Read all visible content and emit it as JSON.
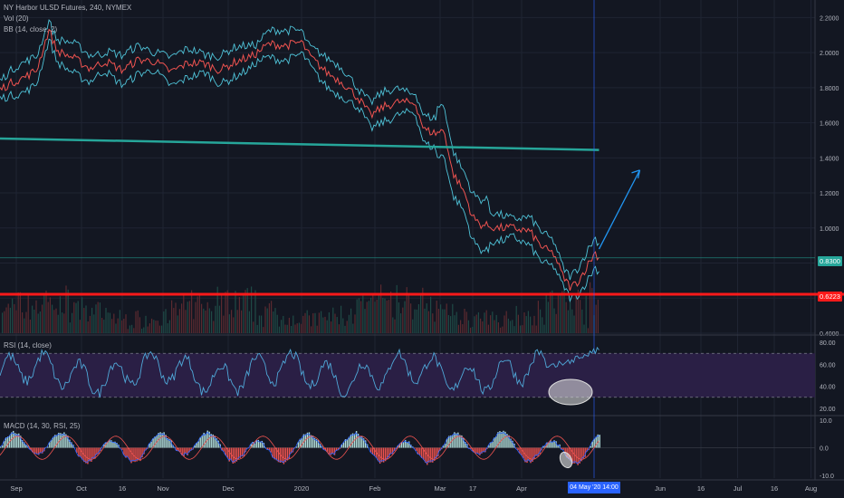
{
  "header": {
    "symbol_line": "NY Harbor ULSD Futures, 240, NYMEX",
    "vol_legend": "Vol (20)",
    "bb_legend": "BB (14, close, 2)"
  },
  "rsi_legend": "RSI (14, close)",
  "macd_legend": "MACD (14, 30, RSI, 25)",
  "colors": {
    "background": "#131722",
    "price_line": "#ef5350",
    "bands": "#4fc3d8",
    "support": "#ff1a1a",
    "trendline": "#26a69a",
    "rsi_line": "#4fa8d8",
    "rsi_band": "#2a1f45",
    "hist_up": "#b2dfdb",
    "hist_down": "#ef5350",
    "arrow": "#2196f3"
  },
  "chart_data": [
    {
      "type": "line",
      "pane": "price",
      "x_labels": [
        "Sep",
        "Oct",
        "16",
        "Nov",
        "Dec",
        "2020",
        "Feb",
        "Mar",
        "17",
        "Apr",
        "Jun",
        "16",
        "Jul",
        "16",
        "Aug"
      ],
      "x_label_positions": [
        0.02,
        0.1,
        0.15,
        0.2,
        0.28,
        0.37,
        0.46,
        0.54,
        0.58,
        0.64,
        0.81,
        0.86,
        0.905,
        0.95,
        0.995
      ],
      "y_ticks": [
        "2.2000",
        "2.0000",
        "1.8000",
        "1.6000",
        "1.4000",
        "1.2000",
        "1.0000",
        "0.8000",
        "0.6000",
        "0.4000"
      ],
      "ylim": [
        0.4,
        2.3
      ],
      "price_series": [
        [
          0.0,
          1.79
        ],
        [
          0.015,
          1.83
        ],
        [
          0.03,
          1.86
        ],
        [
          0.045,
          1.9
        ],
        [
          0.06,
          2.13
        ],
        [
          0.07,
          2.01
        ],
        [
          0.09,
          1.97
        ],
        [
          0.11,
          1.91
        ],
        [
          0.13,
          1.95
        ],
        [
          0.15,
          1.9
        ],
        [
          0.17,
          1.96
        ],
        [
          0.19,
          1.95
        ],
        [
          0.21,
          1.89
        ],
        [
          0.23,
          1.94
        ],
        [
          0.25,
          1.94
        ],
        [
          0.27,
          1.9
        ],
        [
          0.29,
          1.95
        ],
        [
          0.31,
          1.98
        ],
        [
          0.33,
          2.05
        ],
        [
          0.35,
          2.04
        ],
        [
          0.37,
          2.06
        ],
        [
          0.38,
          1.98
        ],
        [
          0.4,
          1.89
        ],
        [
          0.42,
          1.83
        ],
        [
          0.44,
          1.74
        ],
        [
          0.455,
          1.64
        ],
        [
          0.47,
          1.69
        ],
        [
          0.49,
          1.72
        ],
        [
          0.51,
          1.71
        ],
        [
          0.52,
          1.56
        ],
        [
          0.535,
          1.54
        ],
        [
          0.545,
          1.56
        ],
        [
          0.555,
          1.32
        ],
        [
          0.57,
          1.2
        ],
        [
          0.58,
          1.06
        ],
        [
          0.59,
          1.02
        ],
        [
          0.61,
          1.0
        ],
        [
          0.63,
          1.0
        ],
        [
          0.65,
          0.98
        ],
        [
          0.665,
          0.89
        ],
        [
          0.68,
          0.85
        ],
        [
          0.69,
          0.73
        ],
        [
          0.7,
          0.66
        ],
        [
          0.71,
          0.7
        ],
        [
          0.72,
          0.78
        ],
        [
          0.73,
          0.86
        ],
        [
          0.735,
          0.83
        ]
      ],
      "last_price": "0.8300",
      "support_level": 0.6223,
      "support_label": "0.6223",
      "current_level": 0.83,
      "trendline": [
        [
          0.0,
          1.51
        ],
        [
          0.735,
          1.445
        ]
      ],
      "projection_arrow": [
        [
          0.735,
          0.88
        ],
        [
          0.785,
          1.33
        ]
      ]
    },
    {
      "type": "line",
      "pane": "rsi",
      "y_ticks": [
        "80.00",
        "60.00",
        "40.00",
        "20.00"
      ],
      "ylim": [
        15,
        85
      ],
      "band": [
        30,
        70
      ]
    },
    {
      "type": "bar",
      "pane": "macd",
      "y_ticks": [
        "10.0",
        "0.0",
        "-10.0"
      ],
      "ylim": [
        -11,
        11
      ]
    }
  ],
  "time_axis_highlight": "04 May '20   14:00"
}
